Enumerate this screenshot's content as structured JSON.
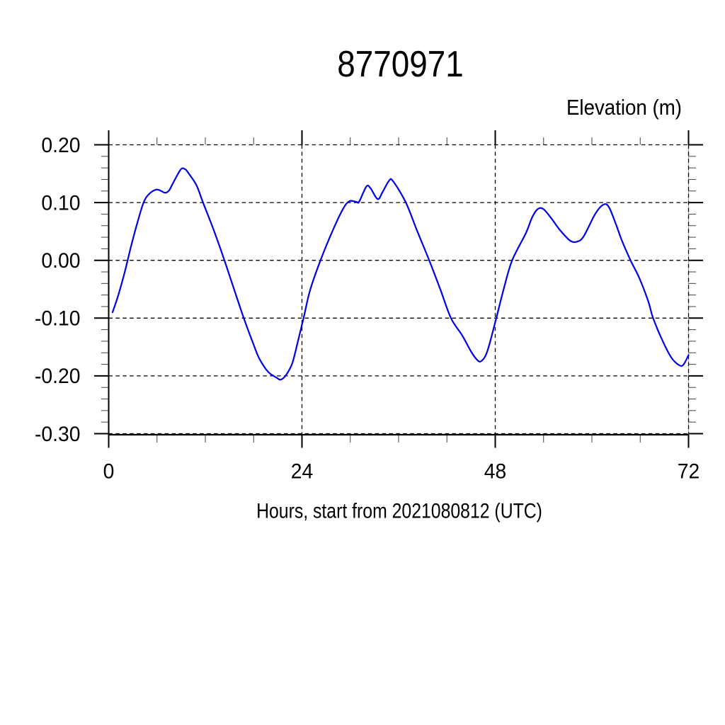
{
  "chart_data": {
    "type": "line",
    "title": "8770971",
    "ylabel": "Elevation (m)",
    "xlabel": "Hours, start from 2021080812 (UTC)",
    "xlim": [
      0,
      72
    ],
    "ylim": [
      -0.3,
      0.2
    ],
    "x_major_ticks": [
      0,
      24,
      48,
      72
    ],
    "x_tick_labels": [
      "0",
      "24",
      "48",
      "72"
    ],
    "x_minor_step": 6,
    "y_major_ticks": [
      0.2,
      0.1,
      0.0,
      -0.1,
      -0.2,
      -0.3
    ],
    "y_tick_labels": [
      "0.20",
      "0.10",
      "0.00",
      "-0.10",
      "-0.20",
      "-0.30"
    ],
    "y_minor_step": 0.02,
    "grid": "dashed",
    "legend": "none",
    "line_color": "#0000e8",
    "frame_color": "#000000",
    "series": [
      {
        "name": "elevation",
        "x": [
          0.48,
          1.2,
          2.0,
          2.7,
          3.5,
          4.33,
          5.0,
          5.8,
          6.3,
          7.0,
          7.5,
          8.0,
          8.96,
          9.51,
          9.85,
          10.9,
          11.7,
          13.0,
          14.3,
          15.4,
          16.8,
          18.0,
          18.7,
          19.8,
          20.9,
          21.35,
          22.0,
          22.8,
          23.5,
          24.2,
          25.0,
          26.3,
          27.8,
          29.1,
          29.9,
          30.8,
          31.1,
          32.0,
          32.5,
          33.4,
          34.0,
          34.8,
          35.3,
          36.9,
          38.3,
          39.8,
          41.2,
          42.5,
          43.9,
          45.0,
          45.8,
          46.3,
          47.0,
          48.0,
          49.1,
          50.1,
          51.8,
          52.6,
          53.3,
          54.0,
          55.0,
          56.0,
          57.3,
          58.2,
          59.0,
          60.4,
          61.4,
          62.1,
          63.0,
          63.7,
          64.8,
          65.9,
          67.0,
          67.6,
          68.8,
          69.9,
          70.9,
          71.4,
          72.0
        ],
        "y": [
          -0.09,
          -0.06,
          -0.02,
          0.02,
          0.062,
          0.1,
          0.1145,
          0.122,
          0.1215,
          0.117,
          0.121,
          0.134,
          0.1575,
          0.1575,
          0.152,
          0.13,
          0.1005,
          0.054,
          0.003,
          -0.043,
          -0.101,
          -0.146,
          -0.17,
          -0.193,
          -0.2035,
          -0.2065,
          -0.199,
          -0.178,
          -0.14,
          -0.1,
          -0.052,
          0.0,
          0.051,
          0.089,
          0.1025,
          0.101,
          0.1015,
          0.1278,
          0.125,
          0.106,
          0.118,
          0.1375,
          0.1372,
          0.1,
          0.051,
          0.0,
          -0.051,
          -0.1,
          -0.13,
          -0.158,
          -0.173,
          -0.174,
          -0.158,
          -0.107,
          -0.047,
          0.0,
          0.047,
          0.075,
          0.089,
          0.0885,
          0.072,
          0.053,
          0.034,
          0.0325,
          0.042,
          0.08,
          0.0962,
          0.0925,
          0.062,
          0.035,
          0.0,
          -0.031,
          -0.071,
          -0.1,
          -0.14,
          -0.169,
          -0.182,
          -0.18,
          -0.164
        ]
      }
    ]
  }
}
